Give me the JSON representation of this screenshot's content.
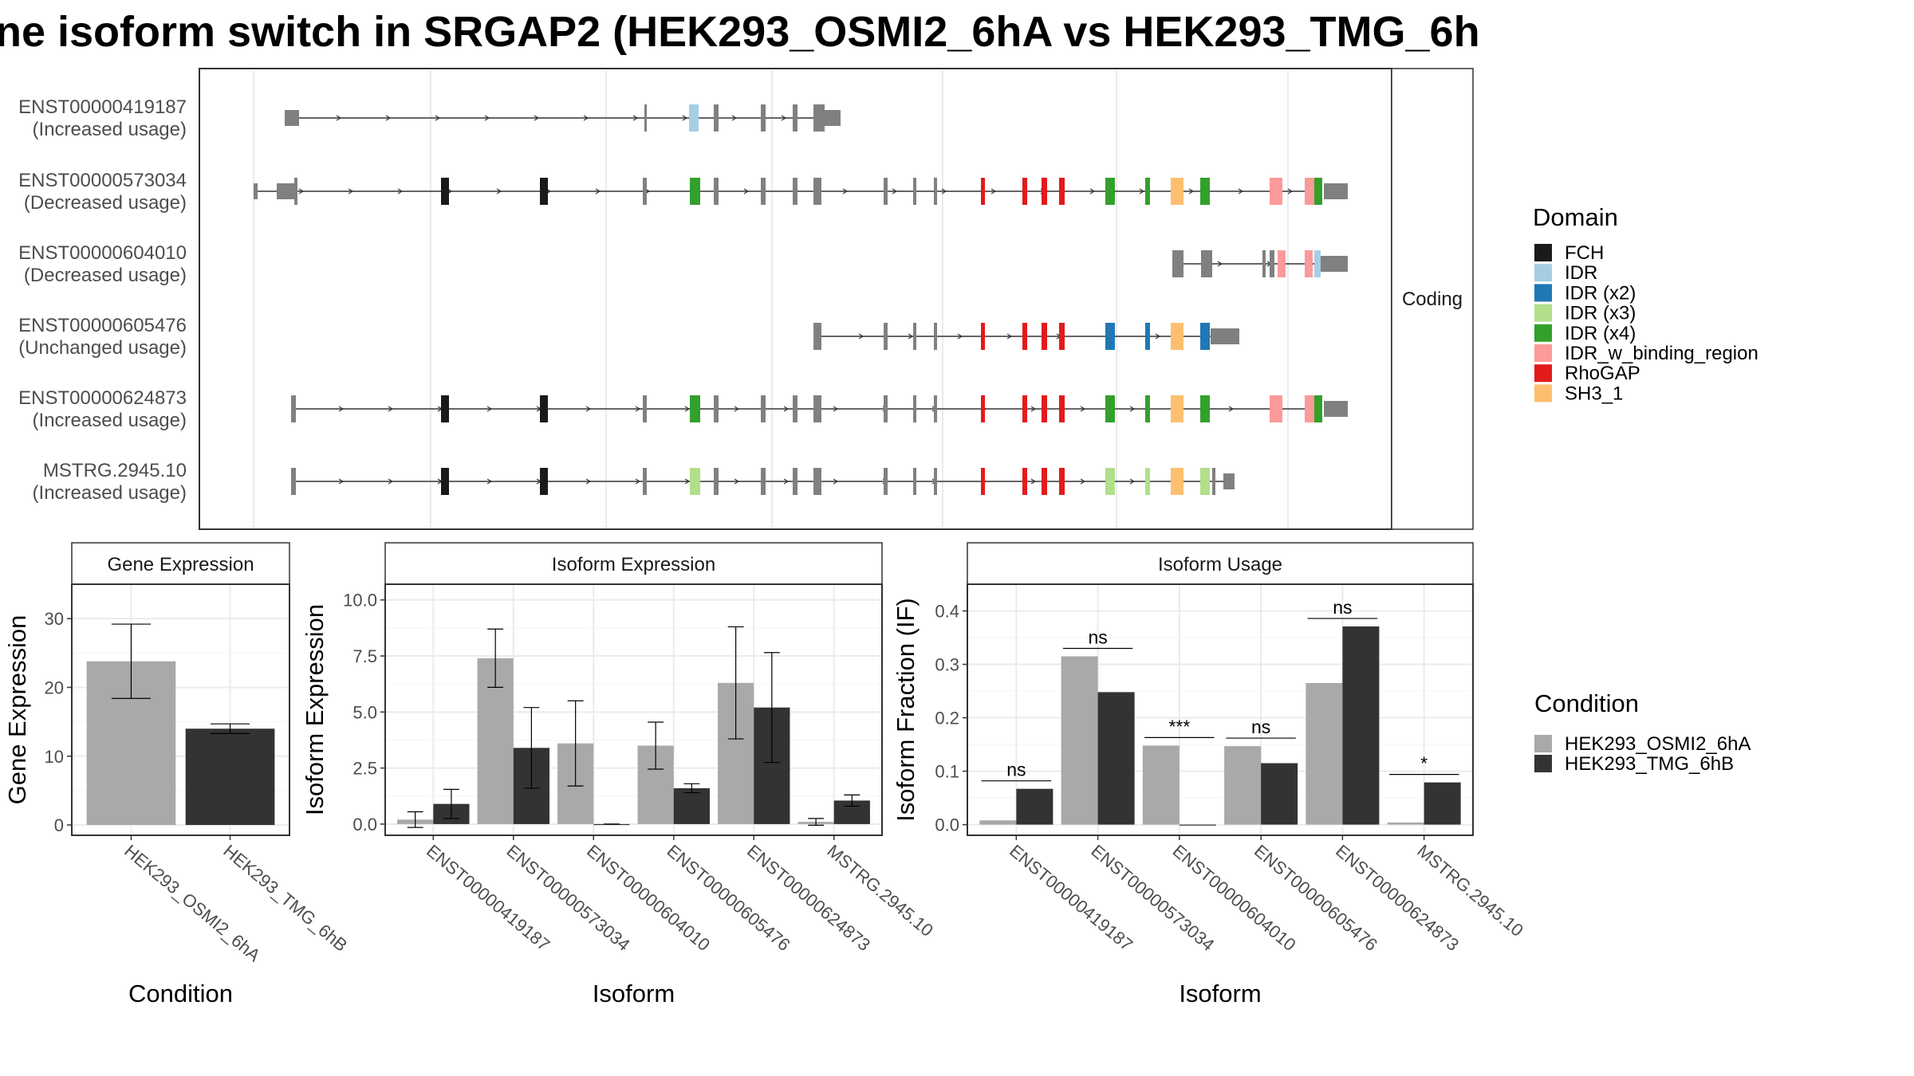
{
  "title": "ne isoform switch in SRGAP2 (HEK293_OSMI2_6hA vs HEK293_TMG_6h",
  "colors": {
    "exon": "#808080",
    "cond_a": "#a9a9a9",
    "cond_b": "#333333",
    "panel_border": "#333333",
    "grid": "#ebebeb",
    "strip_bg": "#ffffff"
  },
  "structure": {
    "facet_label": "Coding",
    "isoforms": [
      {
        "id": "ENST00000419187",
        "usage": "(Increased usage)"
      },
      {
        "id": "ENST00000573034",
        "usage": "(Decreased usage)"
      },
      {
        "id": "ENST00000604010",
        "usage": "(Decreased usage)"
      },
      {
        "id": "ENST00000605476",
        "usage": "(Unchanged usage)"
      },
      {
        "id": "ENST00000624873",
        "usage": "(Increased usage)"
      },
      {
        "id": "MSTRG.2945.10",
        "usage": "(Increased usage)"
      }
    ],
    "domain_legend": {
      "title": "Domain",
      "items": [
        {
          "label": "FCH",
          "color": "#1a1a1a"
        },
        {
          "label": "IDR",
          "color": "#a6cee3"
        },
        {
          "label": "IDR (x2)",
          "color": "#1f78b4"
        },
        {
          "label": "IDR (x3)",
          "color": "#b2df8a"
        },
        {
          "label": "IDR (x4)",
          "color": "#33a02c"
        },
        {
          "label": "IDR_w_binding_region",
          "color": "#fb9a99"
        },
        {
          "label": "RhoGAP",
          "color": "#e31a1c"
        },
        {
          "label": "SH3_1",
          "color": "#fdbf6f"
        }
      ]
    }
  },
  "condition_legend": {
    "title": "Condition",
    "items": [
      "HEK293_OSMI2_6hA",
      "HEK293_TMG_6hB"
    ]
  },
  "chart_data": [
    {
      "type": "bar",
      "title": "Gene Expression",
      "xlabel": "Condition",
      "ylabel": "Gene Expression",
      "categories": [
        "HEK293_OSMI2_6hA",
        "HEK293_TMG_6hB"
      ],
      "series": [
        {
          "name": "HEK293_OSMI2_6hA",
          "values": [
            23.8,
            null
          ],
          "errors": [
            5.4,
            null
          ]
        },
        {
          "name": "HEK293_TMG_6hB",
          "values": [
            null,
            14.0
          ],
          "errors": [
            null,
            0.7
          ]
        }
      ],
      "ylim": [
        -1.5,
        35
      ],
      "yticks": [
        0,
        10,
        20,
        30
      ],
      "ytick_labels": [
        "0",
        "10",
        "20",
        "30"
      ]
    },
    {
      "type": "bar",
      "title": "Isoform Expression",
      "xlabel": "Isoform",
      "ylabel": "Isoform Expression",
      "categories": [
        "ENST00000419187",
        "ENST00000573034",
        "ENST00000604010",
        "ENST00000605476",
        "ENST00000624873",
        "MSTRG.2945.10"
      ],
      "series": [
        {
          "name": "HEK293_OSMI2_6hA",
          "values": [
            0.2,
            7.4,
            3.6,
            3.5,
            6.3,
            0.1
          ],
          "errors": [
            0.35,
            1.3,
            1.9,
            1.05,
            2.5,
            0.15
          ]
        },
        {
          "name": "HEK293_TMG_6hB",
          "values": [
            0.9,
            3.4,
            0.0,
            1.6,
            5.2,
            1.05
          ],
          "errors": [
            0.65,
            1.8,
            0.0,
            0.2,
            2.45,
            0.25
          ]
        }
      ],
      "ylim": [
        -0.5,
        10.7
      ],
      "yticks": [
        0,
        2.5,
        5,
        7.5,
        10
      ],
      "ytick_labels": [
        "0.0",
        "2.5",
        "5.0",
        "7.5",
        "10.0"
      ]
    },
    {
      "type": "bar",
      "title": "Isoform Usage",
      "xlabel": "Isoform",
      "ylabel": "Isoform Fraction (IF)",
      "categories": [
        "ENST00000419187",
        "ENST00000573034",
        "ENST00000604010",
        "ENST00000605476",
        "ENST00000624873",
        "MSTRG.2945.10"
      ],
      "series": [
        {
          "name": "HEK293_OSMI2_6hA",
          "values": [
            0.008,
            0.315,
            0.148,
            0.147,
            0.265,
            0.004
          ]
        },
        {
          "name": "HEK293_TMG_6hB",
          "values": [
            0.067,
            0.248,
            0.0,
            0.115,
            0.371,
            0.079
          ]
        }
      ],
      "significance": [
        "ns",
        "ns",
        "***",
        "ns",
        "ns",
        "*"
      ],
      "ylim": [
        -0.02,
        0.45
      ],
      "yticks": [
        0,
        0.1,
        0.2,
        0.3,
        0.4
      ],
      "ytick_labels": [
        "0.0",
        "0.1",
        "0.2",
        "0.3",
        "0.4"
      ]
    }
  ]
}
